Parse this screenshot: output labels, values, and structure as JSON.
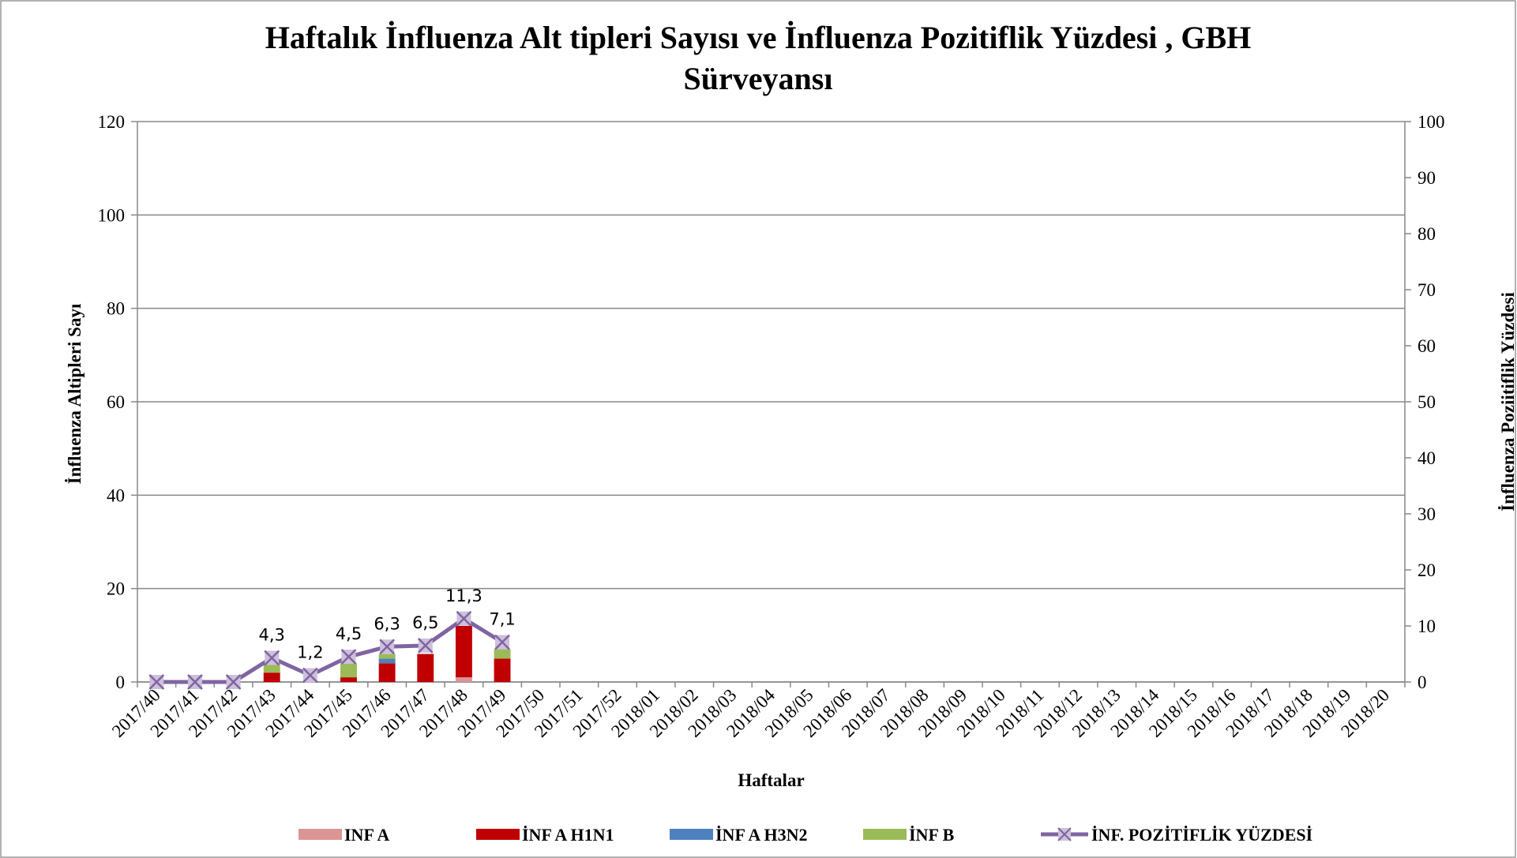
{
  "chart_data": {
    "type": "bar",
    "stacked": true,
    "title": "Haftalık İnfluenza Alt tipleri Sayısı ve İnfluenza Pozitiflik Yüzdesi , GBH Sürveyansı",
    "x_label": "Haftalar",
    "y_label": "İnfluenza Altipleri Sayı",
    "y2_label": "İnfluenza Poziitiflik Yüzdesi",
    "categories": [
      "2017/40",
      "2017/41",
      "2017/42",
      "2017/43",
      "2017/44",
      "2017/45",
      "2017/46",
      "2017/47",
      "2017/48",
      "2017/49",
      "2017/50",
      "2017/51",
      "2017/52",
      "2018/01",
      "2018/02",
      "2018/03",
      "2018/04",
      "2018/05",
      "2018/06",
      "2018/07",
      "2018/08",
      "2018/09",
      "2018/10",
      "2018/11",
      "2018/12",
      "2018/13",
      "2018/14",
      "2018/15",
      "2018/16",
      "2018/17",
      "2018/18",
      "2018/19",
      "2018/20"
    ],
    "series": [
      {
        "name": "INF A",
        "color": "#d99694",
        "values": [
          0,
          0,
          0,
          0,
          0,
          0,
          0,
          0,
          1,
          0,
          null,
          null,
          null,
          null,
          null,
          null,
          null,
          null,
          null,
          null,
          null,
          null,
          null,
          null,
          null,
          null,
          null,
          null,
          null,
          null,
          null,
          null,
          null
        ]
      },
      {
        "name": "İNF A H1N1",
        "color": "#c00000",
        "values": [
          0,
          0,
          0,
          2,
          0,
          1,
          4,
          6,
          11,
          5,
          null,
          null,
          null,
          null,
          null,
          null,
          null,
          null,
          null,
          null,
          null,
          null,
          null,
          null,
          null,
          null,
          null,
          null,
          null,
          null,
          null,
          null,
          null
        ]
      },
      {
        "name": "İNF A H3N2",
        "color": "#4f81bd",
        "values": [
          0,
          0,
          0,
          0,
          0,
          0,
          1,
          0,
          0,
          0,
          null,
          null,
          null,
          null,
          null,
          null,
          null,
          null,
          null,
          null,
          null,
          null,
          null,
          null,
          null,
          null,
          null,
          null,
          null,
          null,
          null,
          null,
          null
        ]
      },
      {
        "name": "İNF B",
        "color": "#9bbb59",
        "values": [
          0,
          0,
          0,
          2,
          0,
          3,
          1,
          0,
          0,
          2,
          null,
          null,
          null,
          null,
          null,
          null,
          null,
          null,
          null,
          null,
          null,
          null,
          null,
          null,
          null,
          null,
          null,
          null,
          null,
          null,
          null,
          null,
          null
        ]
      },
      {
        "name": "İNF. POZİTİFLİK YÜZDESİ",
        "color": "#8064a2",
        "type": "line",
        "axis": "y2",
        "values": [
          0,
          0,
          0,
          4.3,
          1.2,
          4.5,
          6.3,
          6.5,
          11.3,
          7.1,
          null,
          null,
          null,
          null,
          null,
          null,
          null,
          null,
          null,
          null,
          null,
          null,
          null,
          null,
          null,
          null,
          null,
          null,
          null,
          null,
          null,
          null,
          null
        ],
        "value_labels": [
          null,
          null,
          null,
          "4,3",
          "1,2",
          "4,5",
          "6,3",
          "6,5",
          "11,3",
          "7,1",
          null,
          null,
          null,
          null,
          null,
          null,
          null,
          null,
          null,
          null,
          null,
          null,
          null,
          null,
          null,
          null,
          null,
          null,
          null,
          null,
          null,
          null,
          null
        ]
      }
    ],
    "ylim": [
      0,
      120
    ],
    "yticks": [
      0,
      20,
      40,
      60,
      80,
      100,
      120
    ],
    "y2lim": [
      0,
      100
    ],
    "y2ticks": [
      0,
      10,
      20,
      30,
      40,
      50,
      60,
      70,
      80,
      90,
      100
    ],
    "grid": true,
    "legend": "bottom"
  }
}
